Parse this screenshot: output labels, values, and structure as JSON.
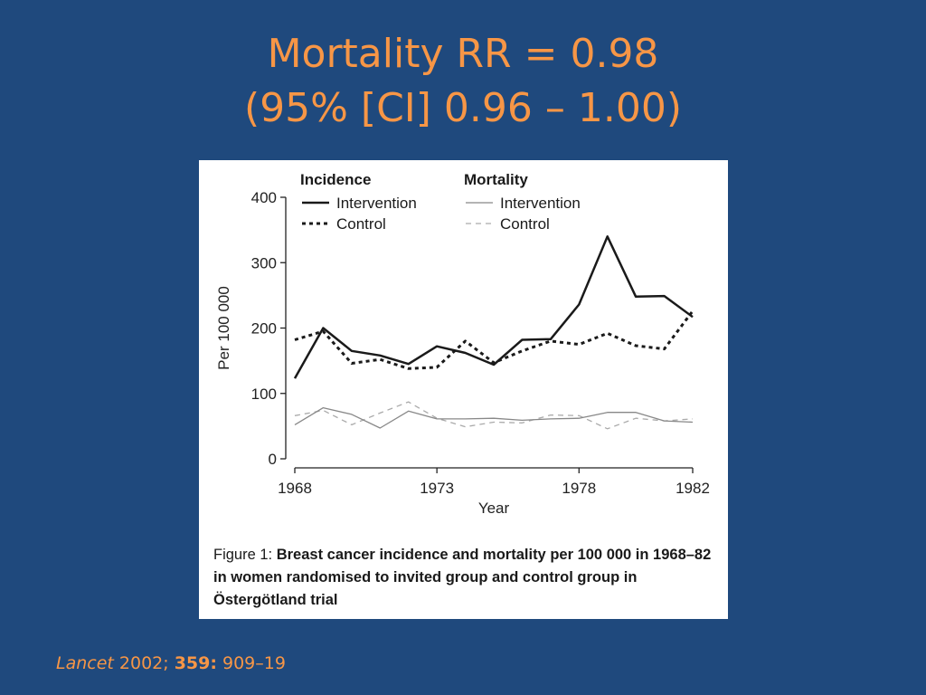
{
  "slide": {
    "title_line1": "Mortality RR = 0.98",
    "title_line2": "(95% [CI] 0.96 – 1.00)"
  },
  "citation": {
    "journal": "Lancet",
    "year": " 2002; ",
    "volume": "359:",
    "pages": " 909–19"
  },
  "figure": {
    "caption_prefix": "Figure 1: ",
    "caption_bold": "Breast cancer incidence and mortality per 100 000 in 1968–82 in women randomised to invited group and control group in Östergötland trial"
  },
  "chart_data": {
    "type": "line",
    "xlabel": "Year",
    "ylabel": "Per 100 000",
    "xlim": [
      1968,
      1982
    ],
    "ylim": [
      0,
      400
    ],
    "xticks": [
      1968,
      1973,
      1978,
      1982
    ],
    "yticks": [
      0,
      100,
      200,
      300,
      400
    ],
    "grid": false,
    "legend": {
      "placement": "top",
      "groups": [
        "Incidence",
        "Mortality"
      ]
    },
    "x": [
      1968,
      1969,
      1970,
      1971,
      1972,
      1973,
      1974,
      1975,
      1976,
      1977,
      1978,
      1979,
      1980,
      1981,
      1982
    ],
    "series": [
      {
        "group": "Incidence",
        "name": "Intervention",
        "style": "solid-bold",
        "color": "#1a1a1a",
        "values": [
          123,
          200,
          165,
          158,
          145,
          172,
          162,
          144,
          182,
          183,
          236,
          340,
          248,
          249,
          217
        ]
      },
      {
        "group": "Incidence",
        "name": "Control",
        "style": "dotted-bold",
        "color": "#1a1a1a",
        "values": [
          182,
          195,
          146,
          152,
          138,
          140,
          180,
          147,
          165,
          180,
          175,
          192,
          173,
          168,
          226
        ]
      },
      {
        "group": "Mortality",
        "name": "Intervention",
        "style": "solid-thin",
        "color": "#888888",
        "values": [
          52,
          78,
          68,
          47,
          73,
          61,
          61,
          62,
          59,
          61,
          62,
          71,
          71,
          58,
          56
        ]
      },
      {
        "group": "Mortality",
        "name": "Control",
        "style": "dashed-thin",
        "color": "#aaaaaa",
        "values": [
          66,
          74,
          52,
          70,
          87,
          62,
          49,
          56,
          55,
          67,
          66,
          46,
          62,
          58,
          61
        ]
      }
    ]
  }
}
